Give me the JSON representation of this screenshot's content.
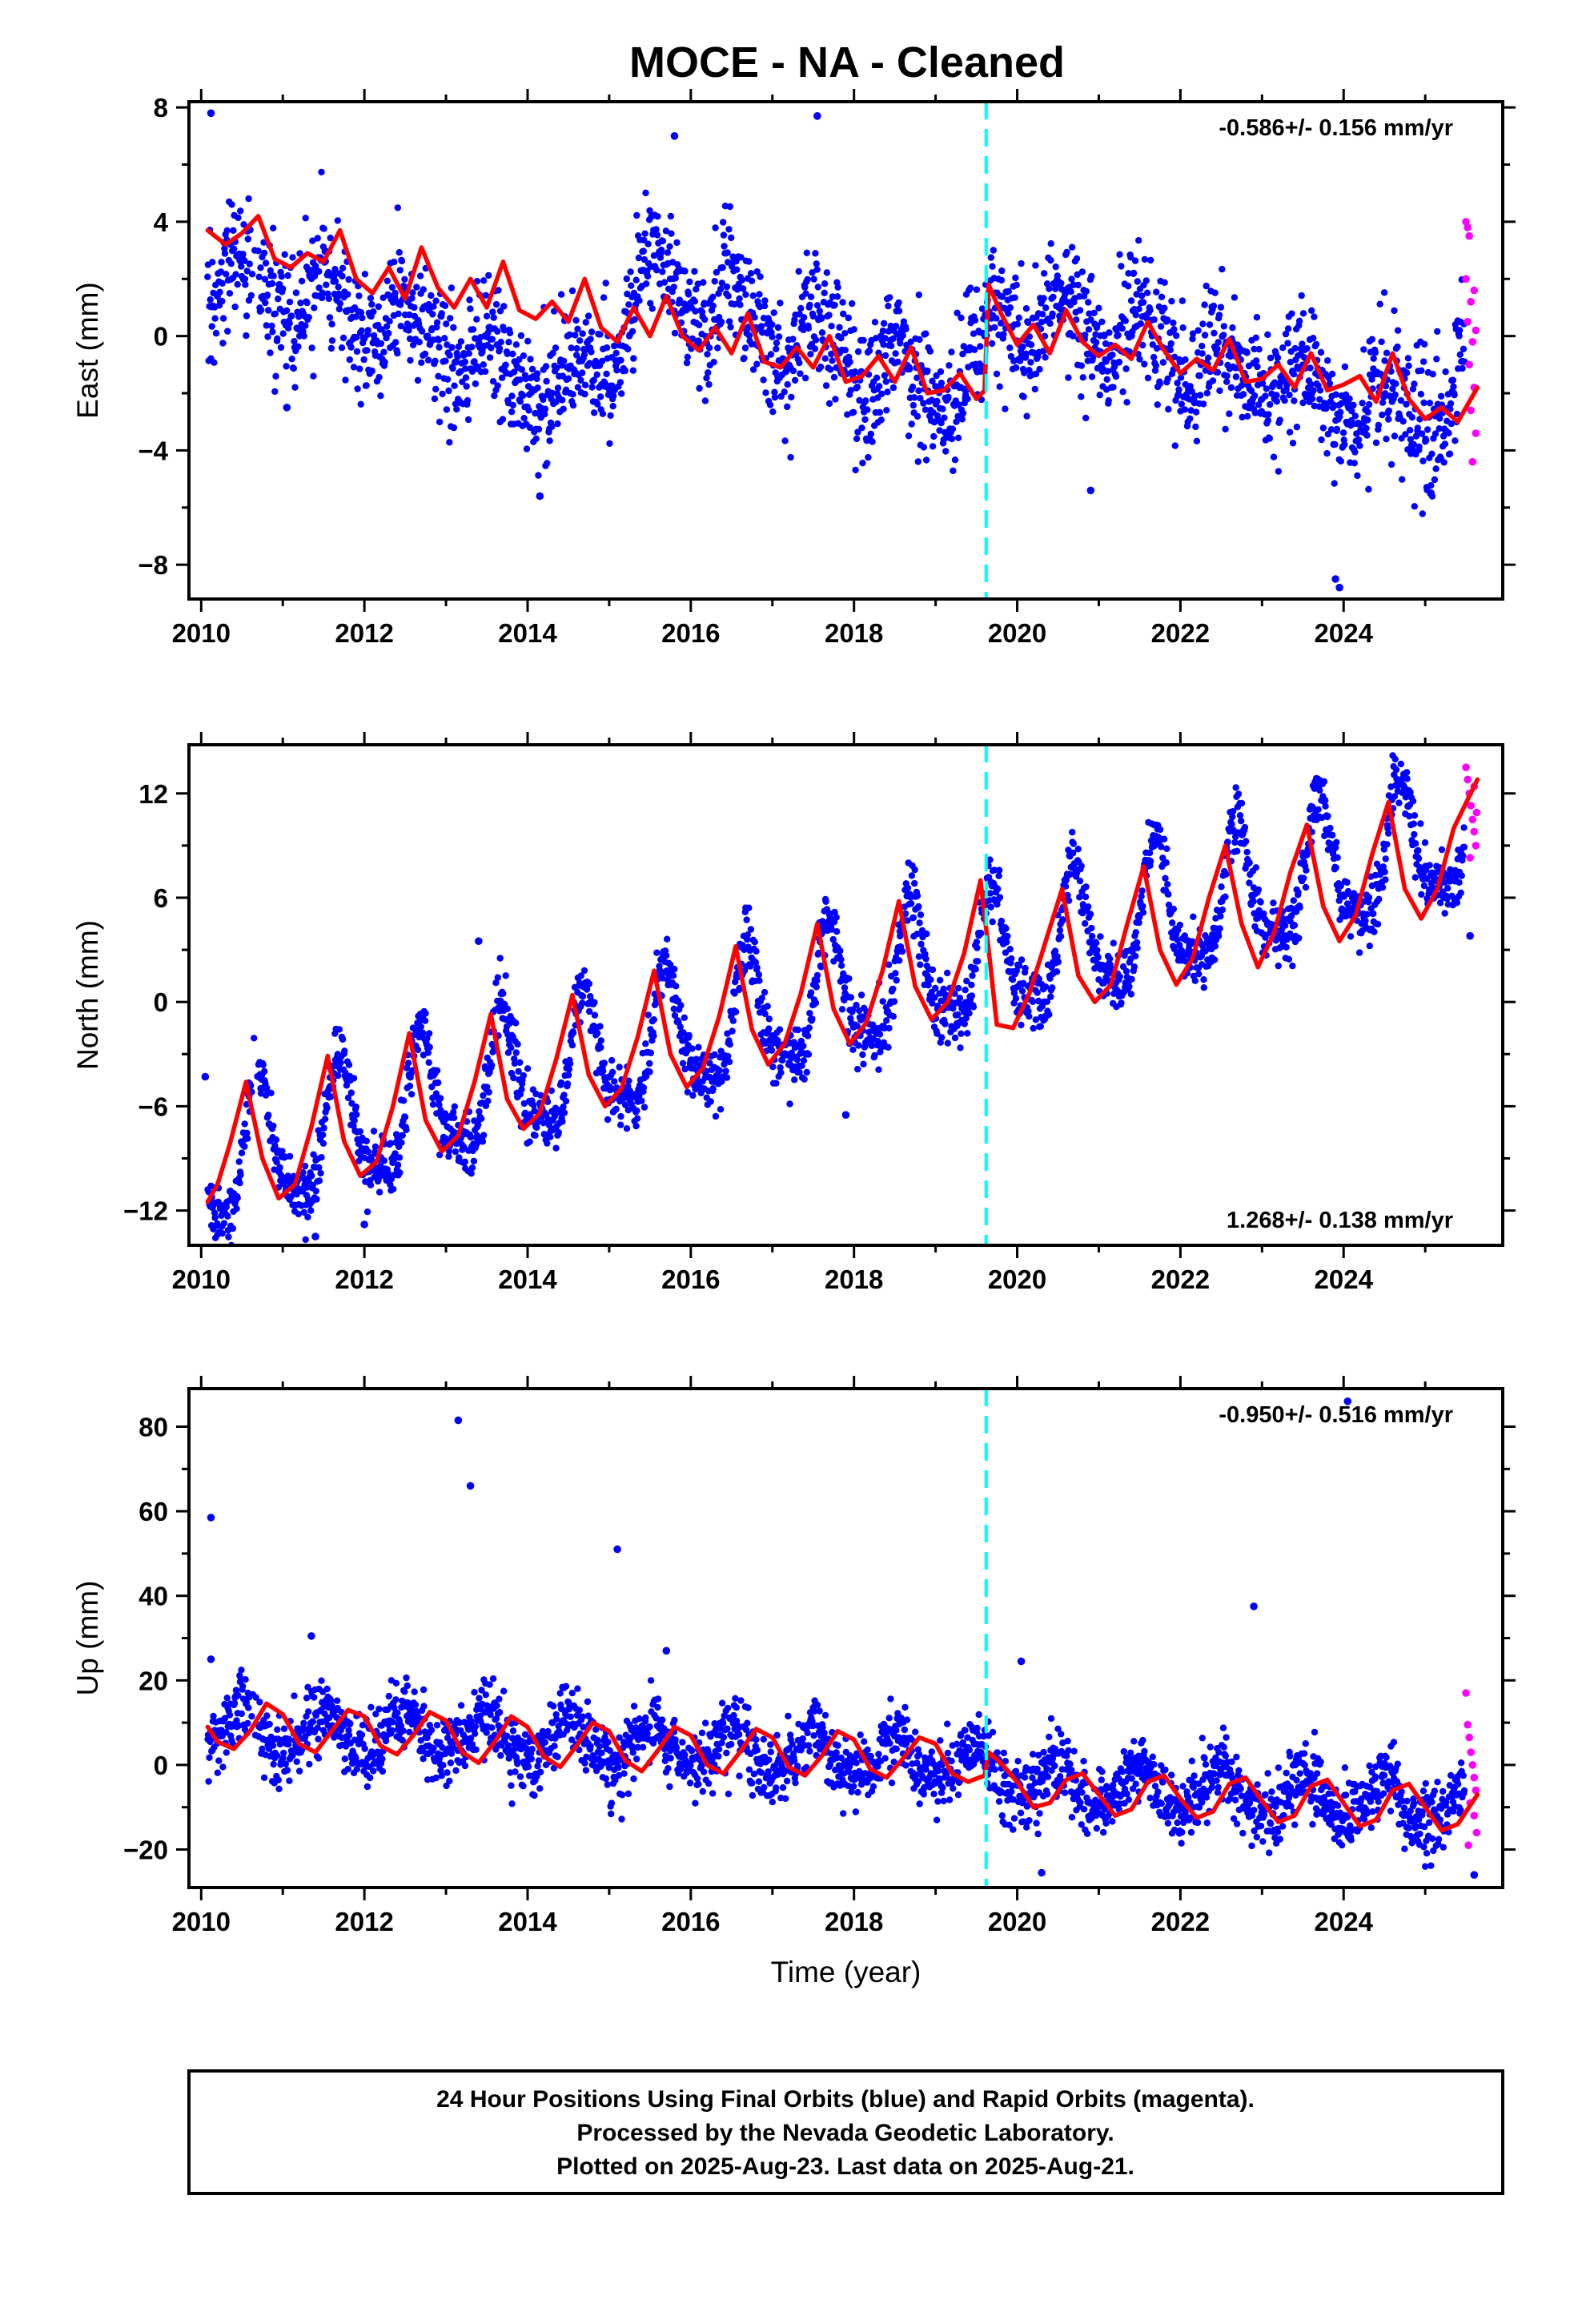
{
  "title": "MOCE  - NA - Cleaned",
  "colors": {
    "final_points": "#0000ff",
    "rapid_points": "#ff00ff",
    "model_line": "#ff0000",
    "equipment_change_line": "#00ffff"
  },
  "footer": {
    "lines": [
      "24 Hour Positions Using Final Orbits (blue) and Rapid Orbits (magenta).",
      "Processed by the Nevada Geodetic Laboratory.",
      "Plotted on 2025-Aug-23. Last data on 2025-Aug-21."
    ]
  },
  "chart_data": [
    {
      "type": "scatter",
      "ylabel": "East (mm)",
      "xlabel": "",
      "rate_text": "-0.586+/- 0.156 mm/yr",
      "rate_position": "top-right",
      "xlim": [
        2009.85,
        2025.95
      ],
      "ylim": [
        -9.2,
        8.2
      ],
      "x_ticks": [
        2010,
        2012,
        2014,
        2016,
        2018,
        2020,
        2022,
        2024
      ],
      "x_tick_labels": [
        "2010",
        "2012",
        "2014",
        "2016",
        "2018",
        "2020",
        "2022",
        "2024"
      ],
      "y_ticks": [
        -8,
        -4,
        0,
        4,
        8
      ],
      "y_tick_labels": [
        "−8",
        "−4",
        "0",
        "4",
        "8"
      ],
      "vline_x": 2019.62,
      "data_range": [
        2010.08,
        2025.64
      ],
      "rapid_range": [
        2025.48,
        2025.64
      ],
      "trend": {
        "mean_x": 2017.86,
        "mean_y": -0.2,
        "slope": -0.586,
        "scatter": 1.1
      },
      "anchors": {
        "x": [
          2010.08,
          2011.0,
          2012.0,
          2013.0,
          2014.0,
          2014.4,
          2015.0,
          2015.6,
          2016.0,
          2017.0,
          2018.0,
          2019.0,
          2019.55,
          2019.65,
          2020.5,
          2021.5,
          2022.5,
          2023.5,
          2024.5,
          2025.3,
          2025.64
        ],
        "y": [
          2.2,
          1.3,
          0.7,
          -0.1,
          -1.3,
          -2.0,
          -0.5,
          2.5,
          1.3,
          0.3,
          -1.0,
          -1.7,
          -1.6,
          0.9,
          0.4,
          -0.1,
          -1.0,
          -1.8,
          -2.5,
          -2.6,
          0.8
        ]
      },
      "seasonal": {
        "annual_amp": 0.9,
        "annual_phase": 0.7,
        "semiannual_amp": 0.3,
        "semiannual_phase": 0.2
      },
      "outliers": [
        {
          "x": 2010.12,
          "y": 7.8
        },
        {
          "x": 2017.55,
          "y": 7.7
        },
        {
          "x": 2014.15,
          "y": -5.6
        },
        {
          "x": 2020.9,
          "y": -5.4
        },
        {
          "x": 2023.9,
          "y": -8.5
        },
        {
          "x": 2023.95,
          "y": -8.8
        },
        {
          "x": 2015.8,
          "y": 7.0
        },
        {
          "x": 2011.05,
          "y": -2.5
        }
      ],
      "model_line": {
        "x": [
          2010.08,
          2010.3,
          2010.5,
          2010.7,
          2010.9,
          2011.1,
          2011.3,
          2011.5,
          2011.7,
          2011.9,
          2012.1,
          2012.3,
          2012.5,
          2012.7,
          2012.9,
          2013.1,
          2013.3,
          2013.5,
          2013.7,
          2013.9,
          2014.1,
          2014.3,
          2014.5,
          2014.7,
          2014.9,
          2015.1,
          2015.3,
          2015.5,
          2015.7,
          2015.9,
          2016.1,
          2016.3,
          2016.5,
          2016.7,
          2016.9,
          2017.1,
          2017.3,
          2017.5,
          2017.7,
          2017.9,
          2018.1,
          2018.3,
          2018.5,
          2018.7,
          2018.9,
          2019.1,
          2019.3,
          2019.5,
          2019.6,
          2019.65,
          2019.8,
          2020.0,
          2020.2,
          2020.4,
          2020.6,
          2020.8,
          2021.0,
          2021.2,
          2021.4,
          2021.6,
          2021.8,
          2022.0,
          2022.2,
          2022.4,
          2022.6,
          2022.8,
          2023.0,
          2023.2,
          2023.4,
          2023.6,
          2023.8,
          2024.0,
          2024.2,
          2024.4,
          2024.6,
          2024.8,
          2025.0,
          2025.2,
          2025.4,
          2025.64
        ],
        "y": [
          3.7,
          3.2,
          3.6,
          4.2,
          2.7,
          2.4,
          2.9,
          2.6,
          3.7,
          2.0,
          1.5,
          2.4,
          1.3,
          3.1,
          1.7,
          1.0,
          2.0,
          1.0,
          2.6,
          0.9,
          0.6,
          1.2,
          0.5,
          2.0,
          0.3,
          -0.2,
          1.0,
          0.0,
          1.4,
          0.0,
          -0.5,
          0.3,
          -0.6,
          0.8,
          -0.9,
          -1.1,
          -0.4,
          -1.1,
          0.0,
          -1.6,
          -1.4,
          -0.7,
          -1.6,
          -0.4,
          -2.0,
          -1.9,
          -1.3,
          -2.2,
          -1.9,
          1.8,
          0.8,
          -0.3,
          0.4,
          -0.6,
          0.9,
          -0.2,
          -0.7,
          -0.3,
          -0.8,
          0.5,
          -0.5,
          -1.3,
          -0.8,
          -1.2,
          -0.1,
          -1.6,
          -1.5,
          -1.0,
          -1.8,
          -0.6,
          -1.9,
          -1.7,
          -1.4,
          -2.3,
          -0.6,
          -2.2,
          -2.9,
          -2.5,
          -3.0,
          -1.8
        ]
      },
      "rapid_points": [
        {
          "x": 2025.5,
          "y": 4.0
        },
        {
          "x": 2025.52,
          "y": 3.8
        },
        {
          "x": 2025.54,
          "y": 3.5
        },
        {
          "x": 2025.5,
          "y": 2.0
        },
        {
          "x": 2025.56,
          "y": 1.2
        },
        {
          "x": 2025.52,
          "y": 0.5
        },
        {
          "x": 2025.58,
          "y": -0.2
        },
        {
          "x": 2025.54,
          "y": -1.0
        },
        {
          "x": 2025.6,
          "y": -1.8
        },
        {
          "x": 2025.56,
          "y": -2.6
        },
        {
          "x": 2025.62,
          "y": -3.4
        },
        {
          "x": 2025.58,
          "y": -4.4
        },
        {
          "x": 2025.6,
          "y": 1.6
        },
        {
          "x": 2025.62,
          "y": 0.2
        }
      ]
    },
    {
      "type": "scatter",
      "ylabel": "North (mm)",
      "xlabel": "",
      "rate_text": "1.268+/- 0.138 mm/yr",
      "rate_position": "bottom-right",
      "xlim": [
        2009.85,
        2025.95
      ],
      "ylim": [
        -14.0,
        14.8
      ],
      "x_ticks": [
        2010,
        2012,
        2014,
        2016,
        2018,
        2020,
        2022,
        2024
      ],
      "x_tick_labels": [
        "2010",
        "2012",
        "2014",
        "2016",
        "2018",
        "2020",
        "2022",
        "2024"
      ],
      "y_ticks": [
        -12,
        -6,
        0,
        6,
        12
      ],
      "y_tick_labels": [
        "−12",
        "−6",
        "0",
        "6",
        "12"
      ],
      "vline_x": 2019.62,
      "data_range": [
        2010.08,
        2025.64
      ],
      "rapid_range": [
        2025.48,
        2025.64
      ],
      "trend": {
        "mean_x": 2017.86,
        "mean_y": 0.0,
        "slope": 1.268,
        "scatter": 0.9
      },
      "anchors": {
        "x": [
          2010.08,
          2012.0,
          2014.0,
          2016.0,
          2018.0,
          2019.55,
          2019.65,
          2021.0,
          2023.0,
          2025.64
        ],
        "y": [
          -9.6,
          -7.1,
          -4.6,
          -2.1,
          0.4,
          2.4,
          2.0,
          3.7,
          6.2,
          9.6
        ]
      },
      "seasonal": {
        "annual_amp": 3.6,
        "annual_phase": 0.55,
        "semiannual_amp": 1.2,
        "semiannual_phase": 0.45
      },
      "outliers": [
        {
          "x": 2010.05,
          "y": -4.3
        },
        {
          "x": 2012.0,
          "y": -12.8
        },
        {
          "x": 2013.4,
          "y": 3.5
        },
        {
          "x": 2017.9,
          "y": -6.5
        },
        {
          "x": 2025.55,
          "y": 3.8
        },
        {
          "x": 2011.4,
          "y": -13.5
        }
      ],
      "model_line": {
        "x": [
          2010.08,
          2010.2,
          2010.35,
          2010.55,
          2010.75,
          2010.95,
          2011.15,
          2011.35,
          2011.55,
          2011.75,
          2011.95,
          2012.15,
          2012.35,
          2012.55,
          2012.75,
          2012.95,
          2013.15,
          2013.35,
          2013.55,
          2013.75,
          2013.95,
          2014.15,
          2014.35,
          2014.55,
          2014.75,
          2014.95,
          2015.15,
          2015.35,
          2015.55,
          2015.75,
          2015.95,
          2016.15,
          2016.35,
          2016.55,
          2016.75,
          2016.95,
          2017.15,
          2017.35,
          2017.55,
          2017.75,
          2017.95,
          2018.15,
          2018.35,
          2018.55,
          2018.75,
          2018.95,
          2019.15,
          2019.35,
          2019.55,
          2019.65,
          2019.75,
          2019.95,
          2020.15,
          2020.35,
          2020.55,
          2020.75,
          2020.95,
          2021.15,
          2021.35,
          2021.55,
          2021.75,
          2021.95,
          2022.15,
          2022.35,
          2022.55,
          2022.75,
          2022.95,
          2023.15,
          2023.35,
          2023.55,
          2023.75,
          2023.95,
          2024.15,
          2024.35,
          2024.55,
          2024.75,
          2024.95,
          2025.15,
          2025.35,
          2025.64
        ],
        "y": [
          -11.5,
          -10.5,
          -8.2,
          -4.6,
          -9.0,
          -11.3,
          -10.5,
          -7.2,
          -3.1,
          -8.0,
          -10.0,
          -9.2,
          -6.0,
          -1.8,
          -6.8,
          -8.6,
          -7.7,
          -4.6,
          -0.7,
          -5.6,
          -7.3,
          -6.4,
          -3.3,
          0.4,
          -4.2,
          -6.0,
          -5.0,
          -2.0,
          1.8,
          -3.0,
          -4.9,
          -3.8,
          -0.8,
          3.2,
          -1.6,
          -3.6,
          -2.4,
          0.5,
          4.5,
          -0.4,
          -2.4,
          -1.2,
          1.8,
          5.8,
          0.9,
          -1.0,
          0.0,
          2.8,
          7.0,
          3.0,
          -1.3,
          -1.5,
          0.5,
          3.5,
          6.5,
          1.5,
          0.0,
          1.0,
          4.5,
          7.8,
          3.0,
          1.0,
          2.5,
          6.0,
          9.0,
          4.5,
          2.0,
          4.0,
          7.5,
          10.2,
          5.5,
          3.5,
          5.0,
          8.5,
          11.5,
          6.5,
          4.8,
          6.5,
          10.0,
          12.8
        ]
      },
      "rapid_points": [
        {
          "x": 2025.5,
          "y": 13.5
        },
        {
          "x": 2025.52,
          "y": 12.8
        },
        {
          "x": 2025.54,
          "y": 12.0
        },
        {
          "x": 2025.56,
          "y": 11.3
        },
        {
          "x": 2025.58,
          "y": 10.5
        },
        {
          "x": 2025.6,
          "y": 9.8
        },
        {
          "x": 2025.62,
          "y": 9.0
        },
        {
          "x": 2025.55,
          "y": 8.3
        },
        {
          "x": 2025.6,
          "y": 12.4
        },
        {
          "x": 2025.63,
          "y": 10.9
        }
      ]
    },
    {
      "type": "scatter",
      "ylabel": "Up (mm)",
      "xlabel": "Time (year)",
      "rate_text": "-0.950+/- 0.516 mm/yr",
      "rate_position": "top-right",
      "xlim": [
        2009.85,
        2025.95
      ],
      "ylim": [
        -29.0,
        89.0
      ],
      "x_ticks": [
        2010,
        2012,
        2014,
        2016,
        2018,
        2020,
        2022,
        2024
      ],
      "x_tick_labels": [
        "2010",
        "2012",
        "2014",
        "2016",
        "2018",
        "2020",
        "2022",
        "2024"
      ],
      "y_ticks": [
        -20,
        0,
        20,
        40,
        60,
        80
      ],
      "y_tick_labels": [
        "−20",
        "0",
        "20",
        "40",
        "60",
        "80"
      ],
      "vline_x": 2019.62,
      "data_range": [
        2010.08,
        2025.64
      ],
      "rapid_range": [
        2025.48,
        2025.64
      ],
      "trend": {
        "mean_x": 2017.86,
        "mean_y": 0.0,
        "slope": -0.95,
        "scatter": 4.0
      },
      "anchors": {
        "x": [
          2010.08,
          2012.0,
          2014.0,
          2016.0,
          2018.0,
          2019.55,
          2019.65,
          2020.5,
          2022.0,
          2024.0,
          2025.64
        ],
        "y": [
          8.0,
          8.0,
          6.0,
          4.0,
          2.0,
          0.5,
          -1.0,
          -5.0,
          -6.0,
          -8.5,
          -10.0
        ]
      },
      "seasonal": {
        "annual_amp": 5.2,
        "annual_phase": 0.75,
        "semiannual_amp": 0.8,
        "semiannual_phase": 0.1
      },
      "outliers": [
        {
          "x": 2010.12,
          "y": 58.5
        },
        {
          "x": 2010.12,
          "y": 25.0
        },
        {
          "x": 2013.15,
          "y": 81.5
        },
        {
          "x": 2013.3,
          "y": 66.0
        },
        {
          "x": 2015.1,
          "y": 51.0
        },
        {
          "x": 2022.9,
          "y": 37.5
        },
        {
          "x": 2024.05,
          "y": 86.0
        },
        {
          "x": 2011.35,
          "y": 30.5
        },
        {
          "x": 2015.7,
          "y": 27.0
        },
        {
          "x": 2020.05,
          "y": 24.5
        },
        {
          "x": 2020.3,
          "y": -25.5
        },
        {
          "x": 2025.6,
          "y": -26.0
        }
      ],
      "model_line": {
        "x": [
          2010.08,
          2010.2,
          2010.4,
          2010.6,
          2010.8,
          2011.0,
          2011.2,
          2011.4,
          2011.6,
          2011.8,
          2012.0,
          2012.2,
          2012.4,
          2012.6,
          2012.8,
          2013.0,
          2013.2,
          2013.4,
          2013.6,
          2013.8,
          2014.0,
          2014.2,
          2014.4,
          2014.6,
          2014.8,
          2015.0,
          2015.2,
          2015.4,
          2015.6,
          2015.8,
          2016.0,
          2016.2,
          2016.4,
          2016.6,
          2016.8,
          2017.0,
          2017.2,
          2017.4,
          2017.6,
          2017.8,
          2018.0,
          2018.2,
          2018.4,
          2018.6,
          2018.8,
          2019.0,
          2019.2,
          2019.4,
          2019.6,
          2019.65,
          2019.8,
          2020.0,
          2020.2,
          2020.4,
          2020.6,
          2020.8,
          2021.0,
          2021.2,
          2021.4,
          2021.6,
          2021.8,
          2022.0,
          2022.2,
          2022.4,
          2022.6,
          2022.8,
          2023.0,
          2023.2,
          2023.4,
          2023.6,
          2023.8,
          2024.0,
          2024.2,
          2024.4,
          2024.6,
          2024.8,
          2025.0,
          2025.2,
          2025.4,
          2025.64
        ],
        "y": [
          9.0,
          5.5,
          3.8,
          8.0,
          14.5,
          12.0,
          5.0,
          3.0,
          8.0,
          13.0,
          11.5,
          4.5,
          2.5,
          7.0,
          12.5,
          10.5,
          3.0,
          0.5,
          5.5,
          11.5,
          9.0,
          2.0,
          -0.5,
          4.5,
          10.0,
          8.0,
          1.0,
          -1.5,
          3.5,
          9.0,
          7.0,
          0.0,
          -2.0,
          3.0,
          8.5,
          6.5,
          -0.5,
          -2.5,
          2.0,
          8.0,
          6.0,
          -1.0,
          -3.0,
          1.5,
          6.5,
          5.0,
          -2.0,
          -4.0,
          -2.5,
          3.0,
          0.5,
          -4.0,
          -10.0,
          -9.0,
          -3.5,
          -2.0,
          -7.0,
          -12.0,
          -10.5,
          -4.0,
          -2.5,
          -8.0,
          -12.5,
          -11.0,
          -4.5,
          -3.0,
          -8.5,
          -13.5,
          -12.0,
          -5.0,
          -3.5,
          -9.0,
          -14.5,
          -13.0,
          -6.0,
          -4.5,
          -10.0,
          -15.5,
          -14.0,
          -7.0
        ]
      },
      "rapid_points": [
        {
          "x": 2025.5,
          "y": 17.0
        },
        {
          "x": 2025.52,
          "y": 9.5
        },
        {
          "x": 2025.54,
          "y": 6.5
        },
        {
          "x": 2025.56,
          "y": 3.0
        },
        {
          "x": 2025.58,
          "y": 0.0
        },
        {
          "x": 2025.6,
          "y": -3.0
        },
        {
          "x": 2025.62,
          "y": -6.0
        },
        {
          "x": 2025.55,
          "y": -9.0
        },
        {
          "x": 2025.6,
          "y": -12.0
        },
        {
          "x": 2025.63,
          "y": -16.0
        },
        {
          "x": 2025.53,
          "y": -19.0
        }
      ]
    }
  ]
}
